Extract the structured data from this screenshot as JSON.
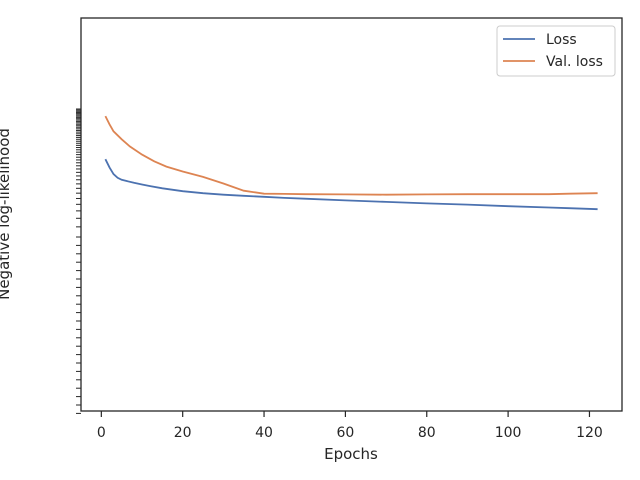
{
  "chart_data": {
    "type": "line",
    "title": "",
    "xlabel": "Epochs",
    "ylabel": "Negative log-likelihood",
    "xlim": [
      -5,
      128
    ],
    "xticks": [
      0,
      20,
      40,
      60,
      80,
      100,
      120
    ],
    "grid": false,
    "legend_position": "top-right",
    "series": [
      {
        "name": "Loss",
        "color": "#4c72b0",
        "x": [
          1,
          2,
          3,
          4,
          5,
          6,
          8,
          10,
          12,
          15,
          20,
          25,
          30,
          35,
          40,
          45,
          50,
          60,
          70,
          80,
          90,
          100,
          110,
          115,
          122
        ],
        "y": [
          4.05,
          3.5,
          3.1,
          2.9,
          2.8,
          2.75,
          2.65,
          2.57,
          2.5,
          2.4,
          2.28,
          2.2,
          2.14,
          2.1,
          2.06,
          2.02,
          1.99,
          1.93,
          1.88,
          1.83,
          1.79,
          1.74,
          1.7,
          1.68,
          1.65
        ]
      },
      {
        "name": "Val. loss",
        "color": "#dd8452",
        "x": [
          1,
          2,
          3,
          5,
          7,
          10,
          13,
          16,
          20,
          25,
          30,
          35,
          40,
          45,
          50,
          60,
          70,
          80,
          90,
          100,
          110,
          115,
          122
        ],
        "y": [
          8.8,
          7.6,
          6.7,
          5.8,
          5.1,
          4.4,
          3.9,
          3.55,
          3.25,
          2.95,
          2.62,
          2.3,
          2.18,
          2.17,
          2.16,
          2.15,
          2.14,
          2.15,
          2.16,
          2.16,
          2.16,
          2.18,
          2.2
        ]
      }
    ]
  }
}
